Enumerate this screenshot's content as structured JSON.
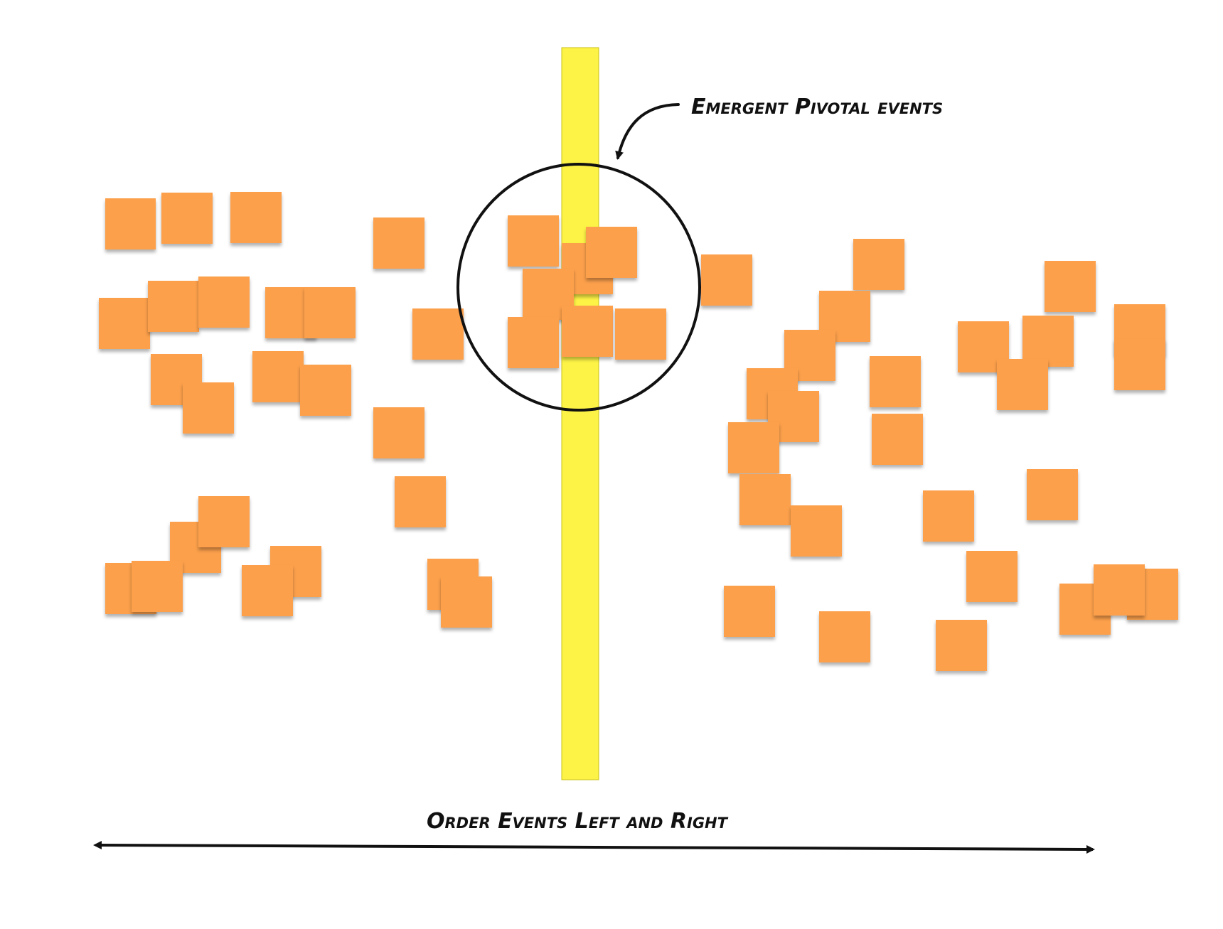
{
  "annotations": {
    "pivotal_label": "Emergent Pivotal events",
    "order_label": "Order Events Left and Right"
  },
  "colors": {
    "sticky_note": "#fca04c",
    "pivotal_band": "#fdf346",
    "ink": "#111111",
    "background": "#ffffff"
  },
  "icons": {
    "callout_arrow": "curved-arrow-icon",
    "timeline_arrow": "double-headed-arrow-icon"
  }
}
